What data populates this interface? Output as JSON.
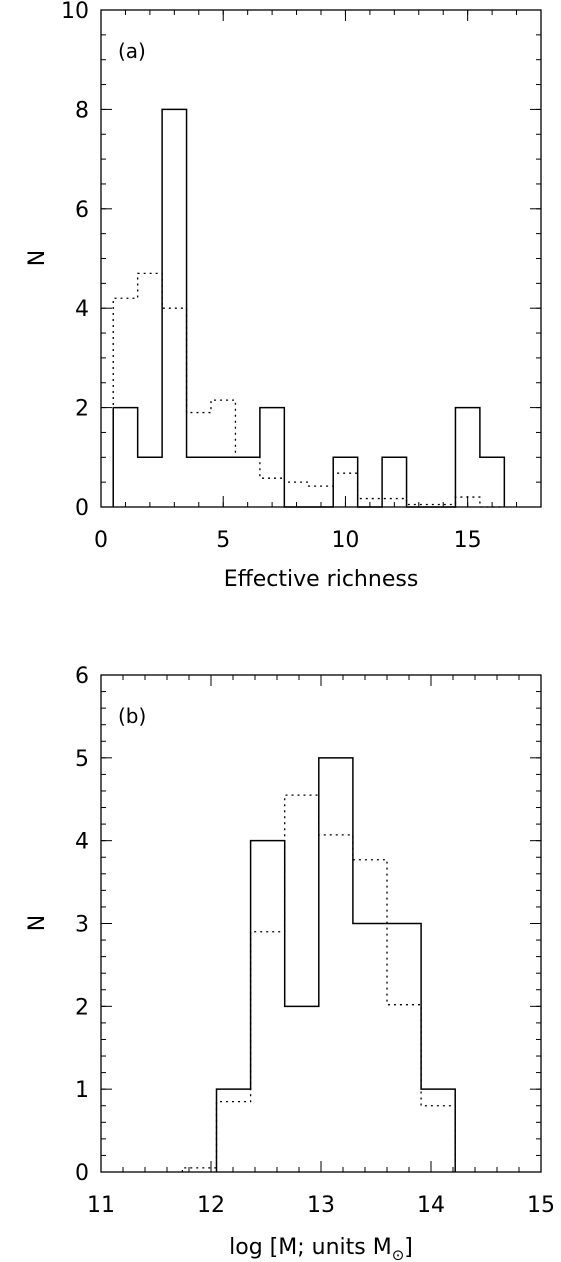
{
  "chart_data": [
    {
      "type": "histogram",
      "panel_label": "(a)",
      "xlabel": "Effective richness",
      "ylabel": "N",
      "xlim": [
        0,
        18
      ],
      "ylim": [
        0,
        10
      ],
      "xticks": [
        0,
        5,
        10,
        15
      ],
      "yticks": [
        0,
        2,
        4,
        6,
        8,
        10
      ],
      "series": [
        {
          "style": "solid",
          "bin_edges": [
            0.5,
            1.5,
            2.5,
            3.5,
            4.5,
            5.5,
            6.5,
            7.5,
            8.5,
            9.5,
            10.5,
            11.5,
            12.5,
            13.5,
            14.5,
            15.5,
            16.5
          ],
          "values": [
            2,
            1,
            8,
            1,
            1,
            1,
            2,
            0,
            0,
            1,
            0,
            1,
            0,
            0,
            2,
            1
          ]
        },
        {
          "style": "dotted",
          "bin_edges": [
            0.5,
            1.5,
            2.5,
            3.5,
            4.5,
            5.5,
            6.5,
            7.5,
            8.5,
            9.5,
            10.5,
            11.5,
            12.5,
            13.5,
            14.5,
            15.5,
            16.5
          ],
          "values": [
            4.2,
            4.7,
            4.0,
            1.9,
            2.15,
            1.0,
            0.58,
            0.5,
            0.42,
            0.68,
            0.17,
            0.17,
            0.05,
            0.05,
            0.2,
            0.0
          ]
        }
      ]
    },
    {
      "type": "histogram",
      "panel_label": "(b)",
      "xlabel": "log [M; units M",
      "xlabel_sub": "⊙",
      "xlabel_end": "]",
      "ylabel": "N",
      "xlim": [
        11,
        15
      ],
      "ylim": [
        0,
        6
      ],
      "xticks": [
        11,
        12,
        13,
        14,
        15
      ],
      "yticks": [
        0,
        1,
        2,
        3,
        4,
        5,
        6
      ],
      "series": [
        {
          "style": "solid",
          "bin_edges": [
            12.05,
            12.36,
            12.67,
            12.98,
            13.29,
            13.6,
            13.91,
            14.22
          ],
          "values": [
            1,
            4,
            2,
            5,
            3,
            3,
            1
          ]
        },
        {
          "style": "dotted",
          "bin_edges": [
            11.74,
            12.05,
            12.36,
            12.67,
            12.98,
            13.29,
            13.6,
            13.91,
            14.22
          ],
          "values": [
            0.05,
            0.85,
            2.9,
            4.55,
            4.07,
            3.77,
            2.02,
            0.8
          ]
        }
      ]
    }
  ]
}
